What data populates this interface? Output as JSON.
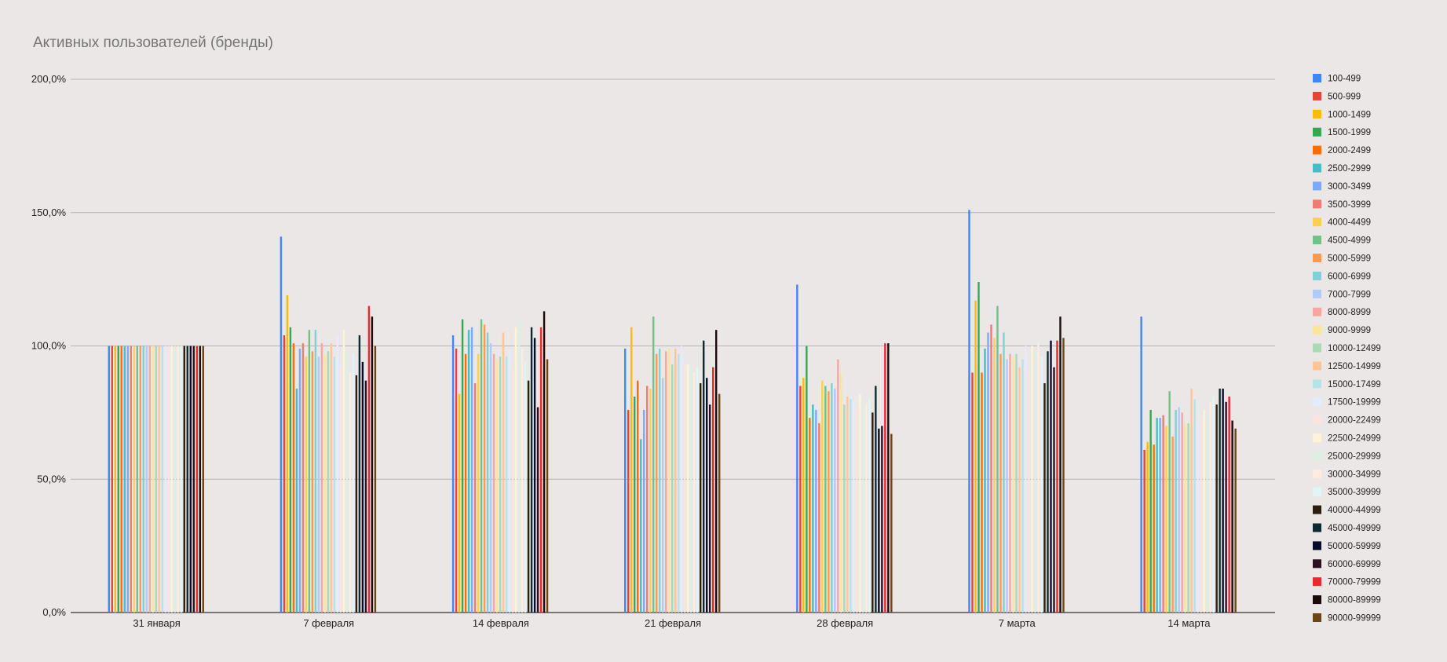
{
  "chart_data": {
    "type": "bar",
    "title": "Активных пользователей (бренды)",
    "xlabel": "",
    "ylabel": "",
    "ylim": [
      0,
      200
    ],
    "yticks": [
      "0,0%",
      "50,0%",
      "100,0%",
      "150,0%",
      "200,0%"
    ],
    "grid": true,
    "legend_position": "right",
    "categories": [
      "31 января",
      "7 февраля",
      "14 февраля",
      "21 февраля",
      "28 февраля",
      "7 марта",
      "14 марта"
    ],
    "series": [
      {
        "name": "100-499",
        "color": "#4285f4",
        "values": [
          100,
          141,
          104,
          99,
          123,
          151,
          111
        ]
      },
      {
        "name": "500-999",
        "color": "#ea4335",
        "values": [
          100,
          104,
          99,
          76,
          85,
          90,
          61
        ]
      },
      {
        "name": "1000-1499",
        "color": "#fbbc04",
        "values": [
          100,
          119,
          82,
          107,
          88,
          117,
          64
        ]
      },
      {
        "name": "1500-1999",
        "color": "#34a853",
        "values": [
          100,
          107,
          110,
          81,
          100,
          124,
          76
        ]
      },
      {
        "name": "2000-2499",
        "color": "#ff6d01",
        "values": [
          100,
          101,
          97,
          87,
          73,
          90,
          63
        ]
      },
      {
        "name": "2500-2999",
        "color": "#46bdc6",
        "values": [
          100,
          84,
          106,
          65,
          78,
          99,
          73
        ]
      },
      {
        "name": "3000-3499",
        "color": "#7baaf7",
        "values": [
          100,
          99,
          107,
          76,
          76,
          105,
          73
        ]
      },
      {
        "name": "3500-3999",
        "color": "#f07b72",
        "values": [
          100,
          101,
          86,
          85,
          71,
          108,
          74
        ]
      },
      {
        "name": "4000-4499",
        "color": "#fcd04f",
        "values": [
          100,
          96,
          97,
          84,
          87,
          103,
          70
        ]
      },
      {
        "name": "4500-4999",
        "color": "#71c287",
        "values": [
          100,
          106,
          110,
          111,
          85,
          115,
          83
        ]
      },
      {
        "name": "5000-5999",
        "color": "#ff994d",
        "values": [
          100,
          98,
          108,
          97,
          83,
          97,
          66
        ]
      },
      {
        "name": "6000-6999",
        "color": "#7ed1d7",
        "values": [
          100,
          106,
          105,
          99,
          86,
          105,
          76
        ]
      },
      {
        "name": "7000-7999",
        "color": "#aecbfa",
        "values": [
          100,
          96,
          101,
          88,
          84,
          95,
          77
        ]
      },
      {
        "name": "8000-8999",
        "color": "#f7a7a0",
        "values": [
          100,
          101,
          97,
          98,
          95,
          97,
          75
        ]
      },
      {
        "name": "9000-9999",
        "color": "#fde49b",
        "values": [
          100,
          97,
          95,
          99,
          90,
          96,
          71
        ]
      },
      {
        "name": "10000-12499",
        "color": "#a8dab5",
        "values": [
          100,
          98,
          96,
          93,
          78,
          97,
          71
        ]
      },
      {
        "name": "12500-14999",
        "color": "#ffc599",
        "values": [
          100,
          101,
          105,
          99,
          81,
          92,
          84
        ]
      },
      {
        "name": "15000-17499",
        "color": "#b5e3e8",
        "values": [
          100,
          96,
          96,
          97,
          80,
          95,
          80
        ]
      },
      {
        "name": "17500-19999",
        "color": "#e3ecfb",
        "values": [
          100,
          104,
          99,
          100,
          79,
          100,
          72
        ]
      },
      {
        "name": "20000-22499",
        "color": "#fbe3e0",
        "values": [
          100,
          92,
          92,
          93,
          77,
          92,
          73
        ]
      },
      {
        "name": "22500-24999",
        "color": "#fdf3d7",
        "values": [
          100,
          106,
          107,
          93,
          82,
          100,
          76
        ]
      },
      {
        "name": "25000-29999",
        "color": "#dcf0e1",
        "values": [
          100,
          98,
          110,
          92,
          78,
          98,
          74
        ]
      },
      {
        "name": "30000-34999",
        "color": "#fdecdf",
        "values": [
          100,
          90,
          99,
          90,
          78,
          101,
          79
        ]
      },
      {
        "name": "35000-39999",
        "color": "#e0f5f6",
        "values": [
          100,
          97,
          94,
          92,
          80,
          96,
          81
        ]
      },
      {
        "name": "40000-44999",
        "color": "#2a1f0c",
        "values": [
          100,
          89,
          87,
          86,
          75,
          86,
          78
        ]
      },
      {
        "name": "45000-49999",
        "color": "#0f2a2e",
        "values": [
          100,
          104,
          107,
          102,
          85,
          98,
          84
        ]
      },
      {
        "name": "50000-59999",
        "color": "#0a0a2a",
        "values": [
          100,
          94,
          103,
          88,
          69,
          102,
          84
        ]
      },
      {
        "name": "60000-69999",
        "color": "#2a1120",
        "values": [
          100,
          87,
          77,
          78,
          70,
          92,
          79
        ]
      },
      {
        "name": "70000-79999",
        "color": "#f0262f",
        "values": [
          100,
          115,
          107,
          92,
          101,
          102,
          81
        ]
      },
      {
        "name": "80000-89999",
        "color": "#1a0a08",
        "values": [
          100,
          111,
          113,
          106,
          101,
          111,
          72
        ]
      },
      {
        "name": "90000-99999",
        "color": "#6b4513",
        "values": [
          100,
          100,
          95,
          82,
          67,
          103,
          69
        ]
      }
    ]
  }
}
